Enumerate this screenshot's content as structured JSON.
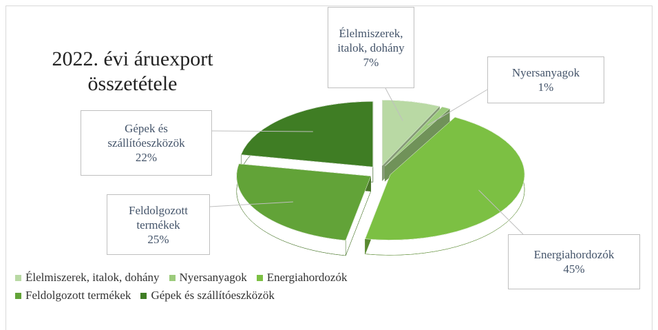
{
  "chart_data": {
    "type": "pie3d",
    "title": "2022. évi áruexport összetétele",
    "categories": [
      "Élelmiszerek, italok, dohány",
      "Nyersanyagok",
      "Energiahordozók",
      "Feldolgozott termékek",
      "Gépek és szállítóeszközök"
    ],
    "values": [
      7,
      1,
      45,
      25,
      22
    ],
    "value_labels": [
      "7%",
      "1%",
      "45%",
      "25%",
      "22%"
    ],
    "colors": [
      "#b9d9a4",
      "#9ccb7c",
      "#7cc043",
      "#62a338",
      "#3f7d24"
    ],
    "legend": "bottom"
  }
}
